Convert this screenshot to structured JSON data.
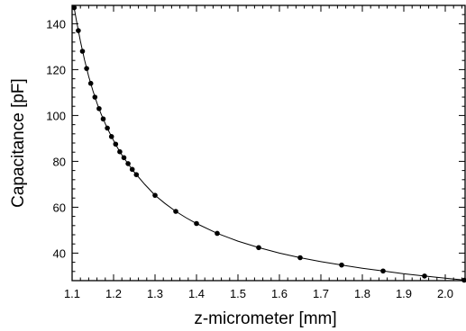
{
  "chart_data": {
    "type": "scatter",
    "title": "",
    "xlabel": "z-micrometer  [mm]",
    "ylabel": "Capacitance  [pF]",
    "xlim": [
      1.1,
      2.05
    ],
    "ylim": [
      28,
      148
    ],
    "x_ticks": [
      1.1,
      1.2,
      1.3,
      1.4,
      1.5,
      1.6,
      1.7,
      1.8,
      1.9,
      2.0
    ],
    "x_tick_labels": [
      "1.1",
      "1.2",
      "1.3",
      "1.4",
      "1.5",
      "1.6",
      "1.7",
      "1.8",
      "1.9",
      "2.0"
    ],
    "y_ticks": [
      40,
      60,
      80,
      100,
      120,
      140
    ],
    "y_tick_labels": [
      "40",
      "60",
      "80",
      "100",
      "120",
      "140"
    ],
    "grid": false,
    "legend": "none",
    "series": [
      {
        "style": "points",
        "x": [
          1.105,
          1.115,
          1.125,
          1.135,
          1.145,
          1.155,
          1.165,
          1.175,
          1.185,
          1.195,
          1.205,
          1.215,
          1.225,
          1.235,
          1.245,
          1.255,
          1.3,
          1.35,
          1.4,
          1.45,
          1.55,
          1.65,
          1.75,
          1.85,
          1.95,
          2.05
        ],
        "y": [
          147.0,
          137.0,
          128.0,
          120.5,
          114.0,
          108.0,
          103.0,
          98.5,
          94.5,
          90.8,
          87.5,
          84.2,
          81.6,
          79.0,
          76.5,
          74.2,
          65.2,
          58.2,
          52.9,
          48.6,
          42.4,
          38.0,
          34.8,
          32.2,
          30.0,
          28.2
        ]
      },
      {
        "style": "line",
        "x": [
          1.1,
          1.11,
          1.12,
          1.13,
          1.14,
          1.15,
          1.16,
          1.17,
          1.18,
          1.19,
          1.2,
          1.21,
          1.22,
          1.23,
          1.24,
          1.25,
          1.275,
          1.3,
          1.325,
          1.35,
          1.375,
          1.4,
          1.45,
          1.5,
          1.55,
          1.6,
          1.65,
          1.7,
          1.75,
          1.8,
          1.85,
          1.9,
          1.95,
          2.0,
          2.05
        ],
        "y": [
          152.0,
          141.8,
          132.4,
          124.2,
          117.0,
          110.9,
          105.4,
          100.6,
          96.4,
          92.6,
          89.1,
          85.8,
          82.8,
          80.2,
          77.7,
          75.3,
          70.0,
          65.2,
          61.5,
          58.2,
          55.4,
          52.9,
          48.6,
          45.2,
          42.4,
          40.0,
          38.0,
          36.3,
          34.8,
          33.4,
          32.2,
          31.0,
          30.0,
          29.1,
          28.2
        ]
      }
    ]
  }
}
